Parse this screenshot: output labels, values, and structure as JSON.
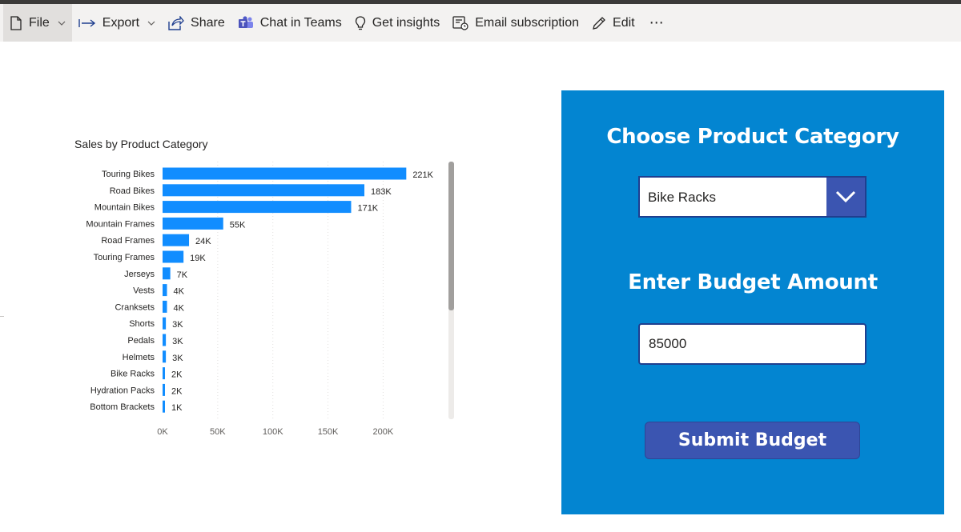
{
  "toolbar": {
    "file_label": "File",
    "export_label": "Export",
    "share_label": "Share",
    "teams_label": "Chat in Teams",
    "insights_label": "Get insights",
    "email_label": "Email subscription",
    "edit_label": "Edit",
    "more_label": "⋯"
  },
  "chart_data": {
    "type": "bar",
    "orientation": "horizontal",
    "title": "Sales by Product Category",
    "categories": [
      "Touring Bikes",
      "Road Bikes",
      "Mountain Bikes",
      "Mountain Frames",
      "Road Frames",
      "Touring Frames",
      "Jerseys",
      "Vests",
      "Cranksets",
      "Shorts",
      "Pedals",
      "Helmets",
      "Bike Racks",
      "Hydration Packs",
      "Bottom Brackets"
    ],
    "values": [
      221000,
      183000,
      171000,
      55000,
      24000,
      19000,
      7000,
      4000,
      4000,
      3000,
      3000,
      3000,
      2000,
      2000,
      1000
    ],
    "data_labels": [
      "221K",
      "183K",
      "171K",
      "55K",
      "24K",
      "19K",
      "7K",
      "4K",
      "4K",
      "3K",
      "3K",
      "3K",
      "2K",
      "2K",
      "1K"
    ],
    "x_ticks": [
      0,
      50000,
      100000,
      150000,
      200000
    ],
    "x_tick_labels": [
      "0K",
      "50K",
      "100K",
      "150K",
      "200K"
    ],
    "xlim": [
      0,
      250000
    ],
    "grid": true,
    "bar_color": "#118dff"
  },
  "form": {
    "category_heading": "Choose Product Category",
    "selected_category": "Bike Racks",
    "budget_heading": "Enter Budget Amount",
    "budget_value": "85000",
    "submit_label": "Submit Budget"
  },
  "colors": {
    "panel_bg": "#0385d1",
    "button_bg": "#3b55b1",
    "bar": "#118dff"
  }
}
